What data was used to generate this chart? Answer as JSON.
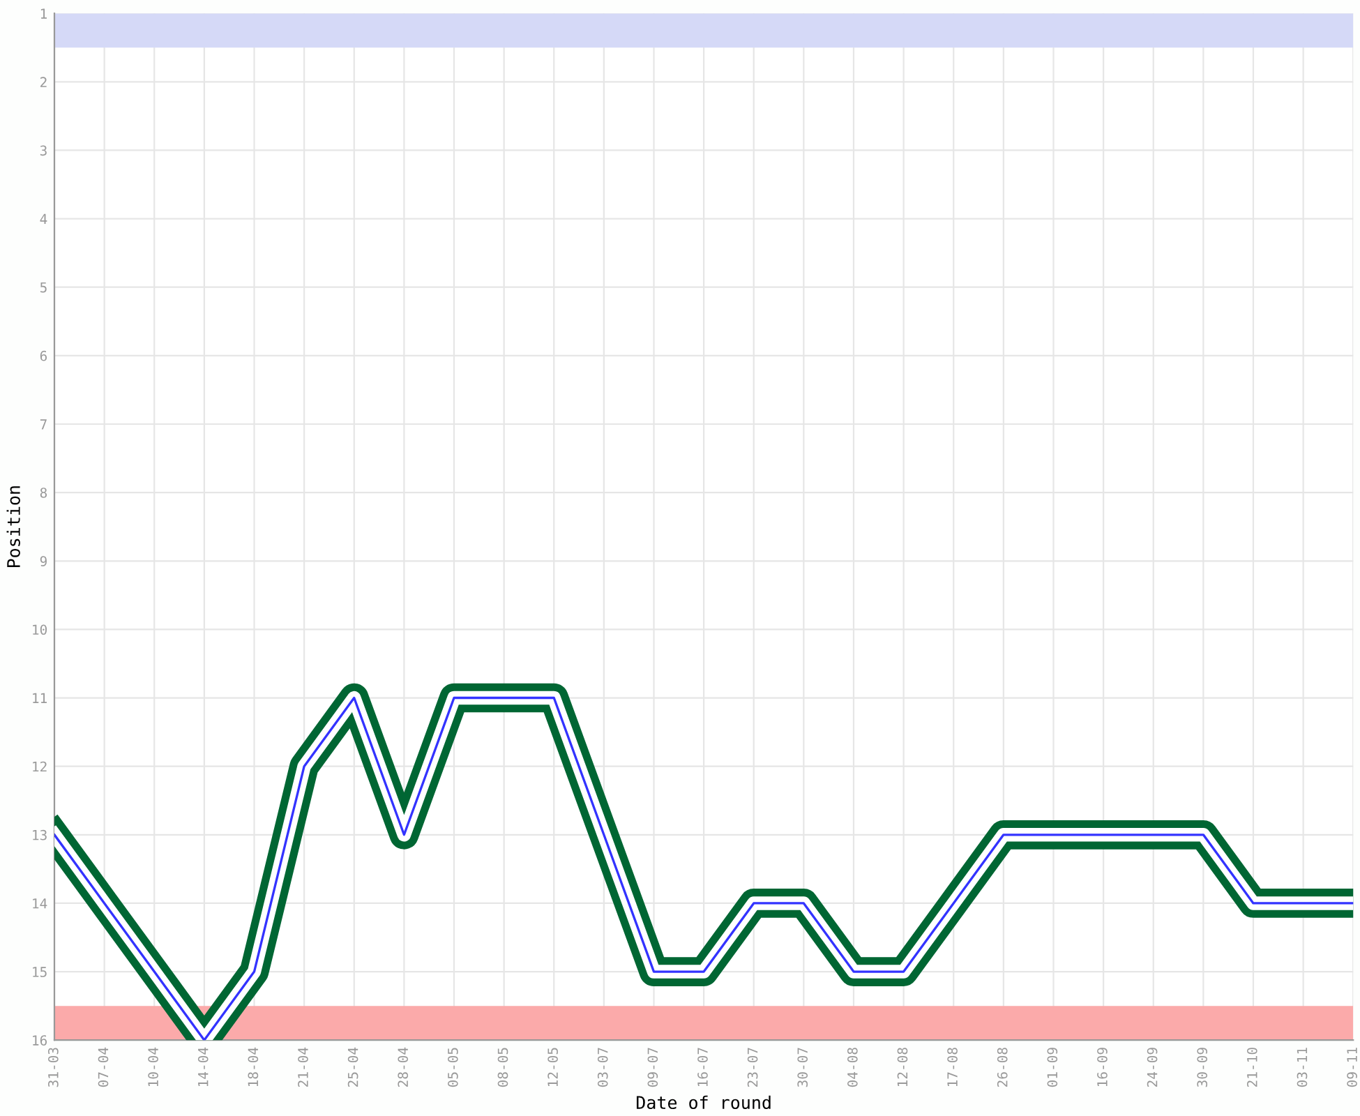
{
  "chart_data": {
    "type": "line",
    "xlabel": "Date of round",
    "ylabel": "Position",
    "categories": [
      "31-03",
      "07-04",
      "10-04",
      "14-04",
      "18-04",
      "21-04",
      "25-04",
      "28-04",
      "05-05",
      "08-05",
      "12-05",
      "03-07",
      "09-07",
      "16-07",
      "23-07",
      "30-07",
      "04-08",
      "12-08",
      "17-08",
      "26-08",
      "01-09",
      "16-09",
      "24-09",
      "30-09",
      "21-10",
      "03-11",
      "09-11"
    ],
    "series": [
      {
        "color": "#3333ff",
        "values": [
          13,
          14,
          15,
          16,
          15,
          12,
          11,
          13,
          11,
          11,
          11,
          13,
          15,
          15,
          14,
          14,
          15,
          15,
          14,
          13,
          13,
          13,
          13,
          13,
          14,
          14,
          14
        ]
      }
    ],
    "ylim": [
      16,
      1
    ],
    "yticks": [
      1,
      2,
      3,
      4,
      5,
      6,
      7,
      8,
      9,
      10,
      11,
      12,
      13,
      14,
      15,
      16
    ],
    "bands": [
      {
        "axis": "y",
        "from": 1,
        "to": 1.5,
        "color": "#d5d9f7"
      },
      {
        "axis": "y",
        "from": 15.5,
        "to": 16,
        "color": "#fbaaaa"
      }
    ],
    "grid": true,
    "legend": false,
    "marker": "none",
    "line_style": "solid"
  }
}
